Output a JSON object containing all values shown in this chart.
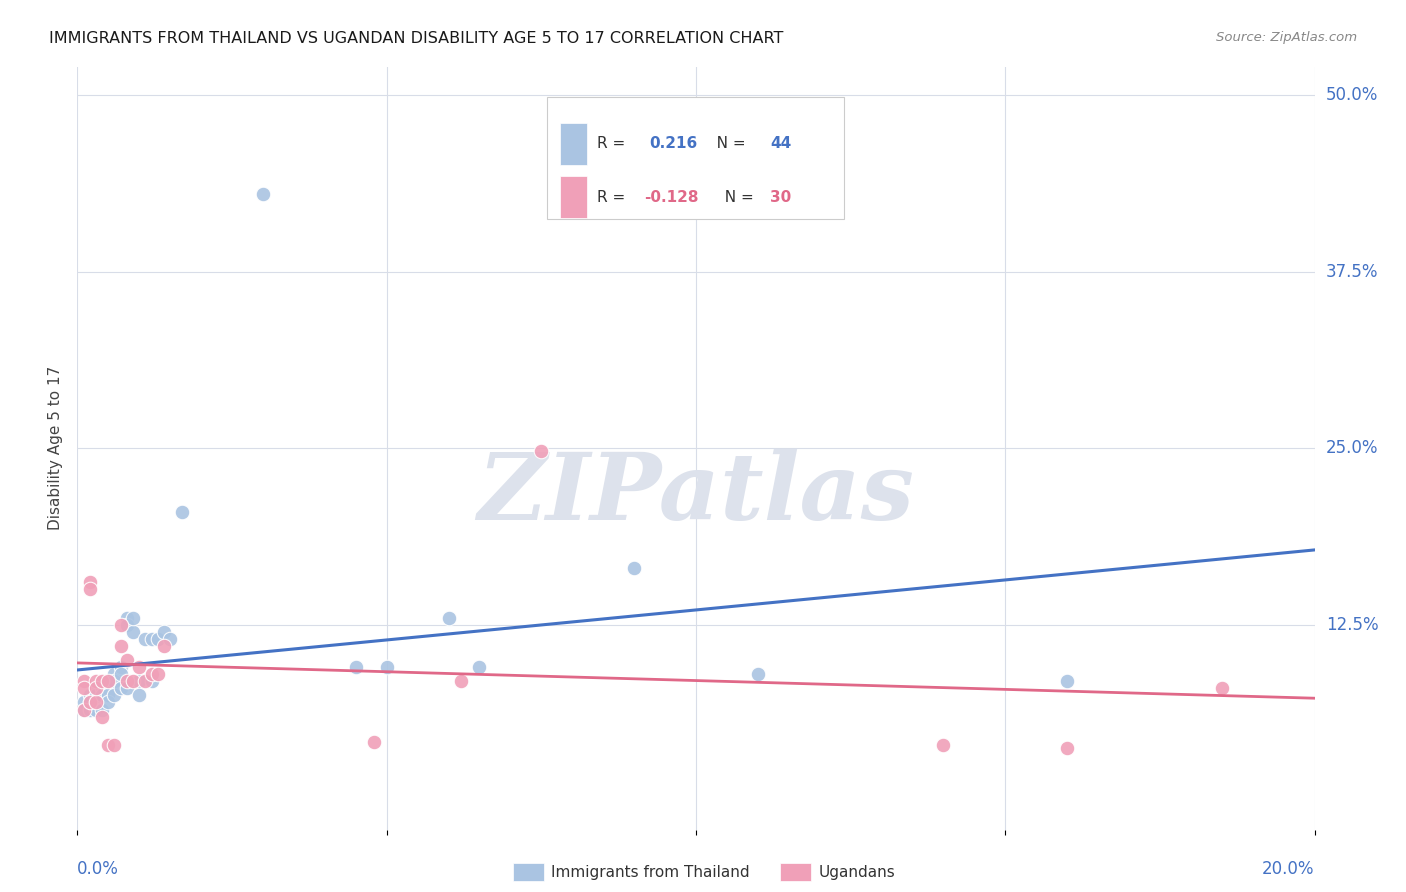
{
  "title": "IMMIGRANTS FROM THAILAND VS UGANDAN DISABILITY AGE 5 TO 17 CORRELATION CHART",
  "source": "Source: ZipAtlas.com",
  "ylabel": "Disability Age 5 to 17",
  "right_ytick_labels": [
    "50.0%",
    "37.5%",
    "25.0%",
    "12.5%"
  ],
  "right_ytick_positions": [
    0.5,
    0.375,
    0.25,
    0.125
  ],
  "xmin": 0.0,
  "xmax": 0.2,
  "ymin": -0.02,
  "ymax": 0.52,
  "blue_color": "#aac4e2",
  "pink_color": "#f0a0b8",
  "blue_line_color": "#4472c4",
  "pink_line_color": "#e06888",
  "thailand_x": [
    0.001,
    0.001,
    0.002,
    0.002,
    0.002,
    0.003,
    0.003,
    0.003,
    0.003,
    0.004,
    0.004,
    0.004,
    0.005,
    0.005,
    0.005,
    0.005,
    0.006,
    0.006,
    0.006,
    0.007,
    0.007,
    0.007,
    0.008,
    0.008,
    0.008,
    0.009,
    0.009,
    0.01,
    0.01,
    0.011,
    0.012,
    0.012,
    0.013,
    0.014,
    0.015,
    0.017,
    0.03,
    0.045,
    0.05,
    0.06,
    0.065,
    0.09,
    0.11,
    0.16
  ],
  "thailand_y": [
    0.07,
    0.065,
    0.075,
    0.07,
    0.065,
    0.08,
    0.075,
    0.07,
    0.065,
    0.08,
    0.075,
    0.065,
    0.085,
    0.08,
    0.075,
    0.07,
    0.09,
    0.085,
    0.075,
    0.095,
    0.09,
    0.08,
    0.13,
    0.125,
    0.08,
    0.12,
    0.13,
    0.085,
    0.075,
    0.115,
    0.085,
    0.115,
    0.115,
    0.12,
    0.115,
    0.205,
    0.43,
    0.095,
    0.095,
    0.13,
    0.095,
    0.165,
    0.09,
    0.085
  ],
  "uganda_x": [
    0.001,
    0.001,
    0.001,
    0.002,
    0.002,
    0.002,
    0.003,
    0.003,
    0.003,
    0.004,
    0.004,
    0.005,
    0.005,
    0.006,
    0.007,
    0.007,
    0.008,
    0.008,
    0.009,
    0.01,
    0.011,
    0.012,
    0.013,
    0.014,
    0.048,
    0.062,
    0.075,
    0.14,
    0.16,
    0.185
  ],
  "uganda_y": [
    0.085,
    0.08,
    0.065,
    0.155,
    0.15,
    0.07,
    0.07,
    0.085,
    0.08,
    0.06,
    0.085,
    0.085,
    0.04,
    0.04,
    0.125,
    0.11,
    0.1,
    0.085,
    0.085,
    0.095,
    0.085,
    0.09,
    0.09,
    0.11,
    0.042,
    0.085,
    0.248,
    0.04,
    0.038,
    0.08
  ],
  "blue_trend_x": [
    0.0,
    0.2
  ],
  "blue_trend_y": [
    0.093,
    0.178
  ],
  "pink_trend_x": [
    0.0,
    0.2
  ],
  "pink_trend_y": [
    0.098,
    0.073
  ],
  "grid_color": "#d8dde8",
  "background_color": "#ffffff",
  "legend_label_thailand": "Immigrants from Thailand",
  "legend_label_uganda": "Ugandans",
  "watermark_text": "ZIPatlas",
  "watermark_color": "#dde2ec"
}
